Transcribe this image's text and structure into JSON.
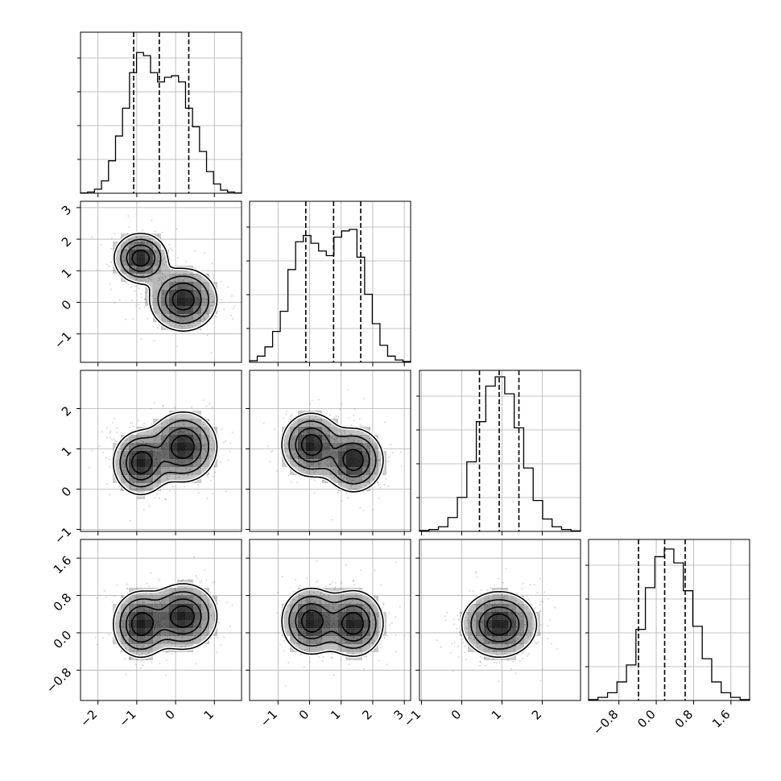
{
  "chart_data": {
    "type": "corner",
    "description_of_layout": "lower-triangular matrix of 4 parameters",
    "params": [
      {
        "range": [
          -2.45,
          1.7
        ],
        "ticks": [
          -2,
          -1,
          0,
          1
        ],
        "tick_labels": [
          "−2",
          "−1",
          "0",
          "1"
        ],
        "quantiles": [
          -1.08,
          -0.42,
          0.34
        ],
        "modes": [
          [
            -0.9,
            0.35
          ],
          [
            0.2,
            0.45
          ]
        ],
        "hist_values": [
          0.002,
          0.008,
          0.026,
          0.08,
          0.21,
          0.37,
          0.55,
          0.78,
          0.91,
          0.89,
          0.78,
          0.72,
          0.75,
          0.76,
          0.72,
          0.55,
          0.43,
          0.27,
          0.14,
          0.06,
          0.02,
          0.008,
          0.002
        ]
      },
      {
        "range": [
          -1.9,
          3.2
        ],
        "ticks": [
          -1,
          0,
          1,
          2,
          3
        ],
        "tick_labels": [
          "−1",
          "0",
          "1",
          "2",
          "3"
        ],
        "quantiles": [
          -0.12,
          0.76,
          1.62
        ],
        "modes": [
          [
            0.05,
            0.5
          ],
          [
            1.45,
            0.5
          ]
        ],
        "hist_values": [
          0.01,
          0.04,
          0.1,
          0.2,
          0.33,
          0.6,
          0.78,
          0.82,
          0.77,
          0.72,
          0.69,
          0.81,
          0.85,
          0.86,
          0.68,
          0.44,
          0.25,
          0.11,
          0.04,
          0.015,
          0.005
        ]
      },
      {
        "range": [
          -1.05,
          2.95
        ],
        "ticks": [
          -1,
          0,
          1,
          2
        ],
        "tick_labels": [
          "−1",
          "0",
          "1",
          "2"
        ],
        "quantiles": [
          0.44,
          0.93,
          1.42
        ],
        "modes": [
          [
            0.9,
            0.42
          ]
        ],
        "hist_values": [
          0.006,
          0.012,
          0.03,
          0.09,
          0.22,
          0.45,
          0.71,
          0.94,
          1.0,
          0.89,
          0.67,
          0.41,
          0.2,
          0.08,
          0.03,
          0.012,
          0.004
        ]
      },
      {
        "range": [
          -1.45,
          2.0
        ],
        "ticks": [
          -0.8,
          0.0,
          0.8,
          1.6
        ],
        "tick_labels": [
          "−0.8",
          "0.0",
          "0.8",
          "1.6"
        ],
        "quantiles": [
          -0.38,
          0.18,
          0.62
        ],
        "modes": [
          [
            0.18,
            0.35
          ]
        ],
        "hist_values": [
          0.006,
          0.02,
          0.05,
          0.12,
          0.23,
          0.46,
          0.73,
          0.93,
          0.98,
          0.89,
          0.71,
          0.48,
          0.27,
          0.12,
          0.05,
          0.02,
          0.006
        ]
      }
    ],
    "pairs": [
      {
        "row": 1,
        "col": 0,
        "modes": [
          {
            "x": -0.9,
            "y": 1.4,
            "sx": 0.33,
            "sy": 0.38
          },
          {
            "x": 0.2,
            "y": 0.08,
            "sx": 0.42,
            "sy": 0.48
          }
        ]
      },
      {
        "row": 2,
        "col": 0,
        "modes": [
          {
            "x": -0.9,
            "y": 0.65,
            "sx": 0.34,
            "sy": 0.38
          },
          {
            "x": 0.2,
            "y": 1.05,
            "sx": 0.42,
            "sy": 0.42
          }
        ]
      },
      {
        "row": 2,
        "col": 1,
        "modes": [
          {
            "x": 0.05,
            "y": 1.1,
            "sx": 0.45,
            "sy": 0.38
          },
          {
            "x": 1.4,
            "y": 0.72,
            "sx": 0.45,
            "sy": 0.38
          }
        ]
      },
      {
        "row": 3,
        "col": 0,
        "modes": [
          {
            "x": -0.9,
            "y": 0.18,
            "sx": 0.34,
            "sy": 0.34
          },
          {
            "x": 0.2,
            "y": 0.35,
            "sx": 0.42,
            "sy": 0.34
          }
        ]
      },
      {
        "row": 3,
        "col": 1,
        "modes": [
          {
            "x": 0.05,
            "y": 0.25,
            "sx": 0.45,
            "sy": 0.34
          },
          {
            "x": 1.4,
            "y": 0.2,
            "sx": 0.45,
            "sy": 0.34
          }
        ]
      },
      {
        "row": 3,
        "col": 2,
        "modes": [
          {
            "x": 0.93,
            "y": 0.18,
            "sx": 0.45,
            "sy": 0.34
          }
        ]
      }
    ],
    "contour_levels": [
      0.12,
      0.3,
      0.55,
      0.8
    ],
    "grid": true,
    "colors": {
      "line": "#000000",
      "grid": "#b0b0b0",
      "points": "#9a9a9a",
      "density": "#000000"
    }
  }
}
